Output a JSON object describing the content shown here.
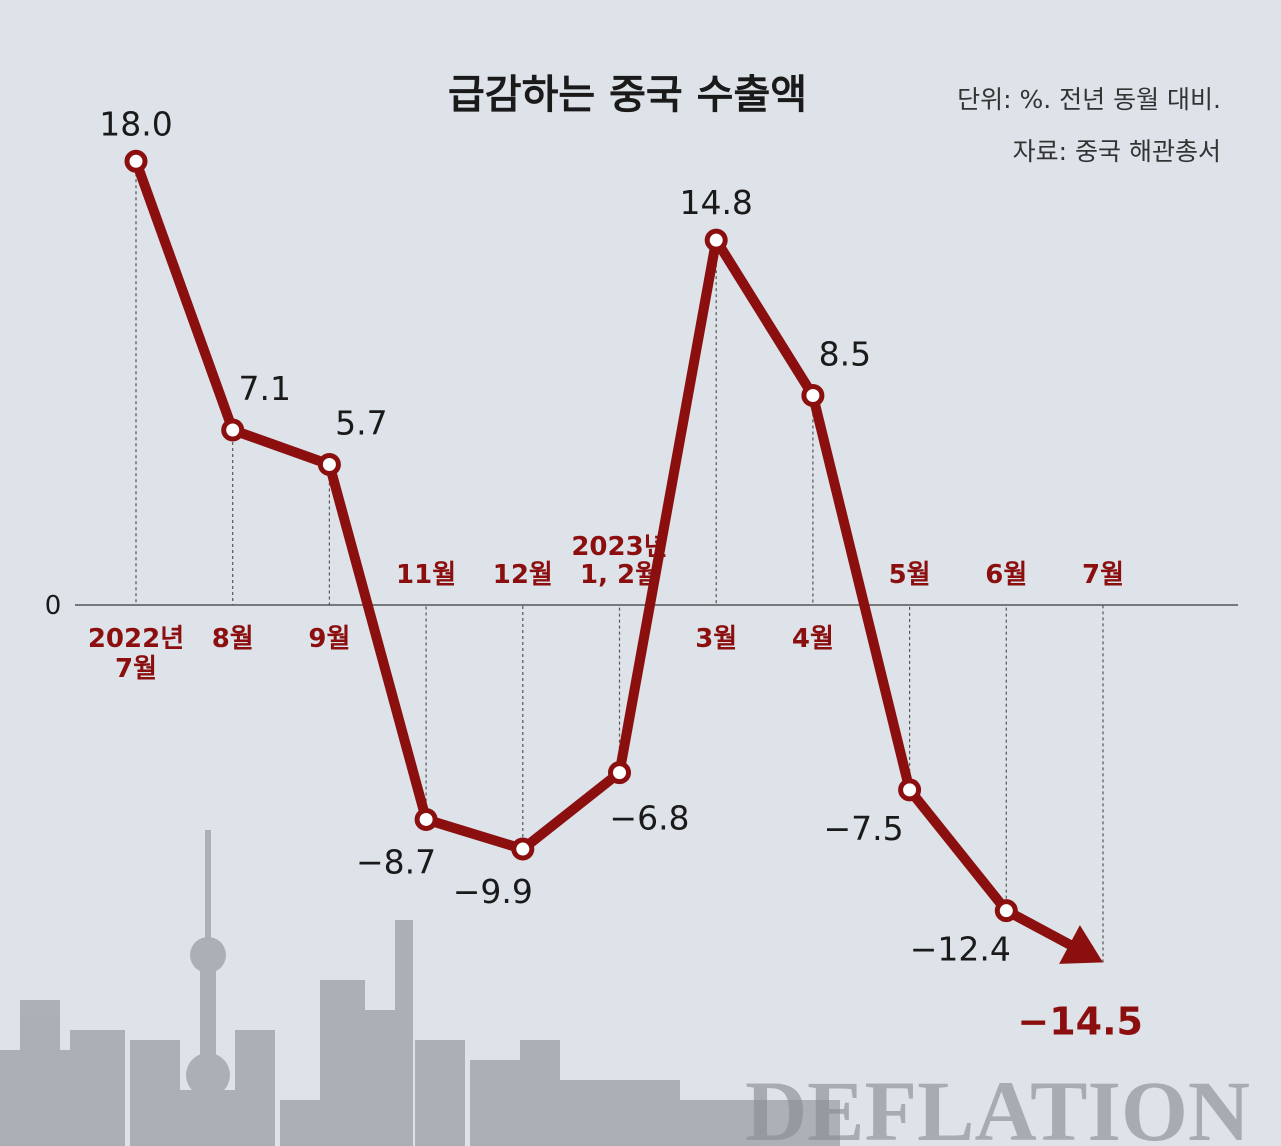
{
  "title": "급감하는 중국 수출액",
  "unit": "단위: %. 전년 동월 대비.",
  "source": "자료: 중국 해관총서",
  "watermark": "DEFLATION",
  "colors": {
    "line": "#8b0f0f",
    "background": "#dde3e8",
    "skyline": "#9aa0a6"
  },
  "chart_data": {
    "type": "line",
    "title": "급감하는 중국 수출액",
    "unit": "단위: %. 전년 동월 대비.",
    "source": "자료: 중국 해관총서",
    "zero_label": "0",
    "categories": [
      [
        "2022년",
        "7월"
      ],
      [
        "8월"
      ],
      [
        "9월"
      ],
      [
        "11월"
      ],
      [
        "12월"
      ],
      [
        "2023년",
        "1, 2월"
      ],
      [
        "3월"
      ],
      [
        "4월"
      ],
      [
        "5월"
      ],
      [
        "6월"
      ],
      [
        "7월"
      ]
    ],
    "values": [
      18.0,
      7.1,
      5.7,
      -8.7,
      -9.9,
      -6.8,
      14.8,
      8.5,
      -7.5,
      -12.4,
      -14.5
    ],
    "value_labels": [
      "18.0",
      "7.1",
      "5.7",
      "−8.7",
      "−9.9",
      "−6.8",
      "14.8",
      "8.5",
      "−7.5",
      "−12.4",
      "−14.5"
    ],
    "ylim": [
      -14.5,
      18.0
    ],
    "grid": false,
    "highlight_last": true
  }
}
